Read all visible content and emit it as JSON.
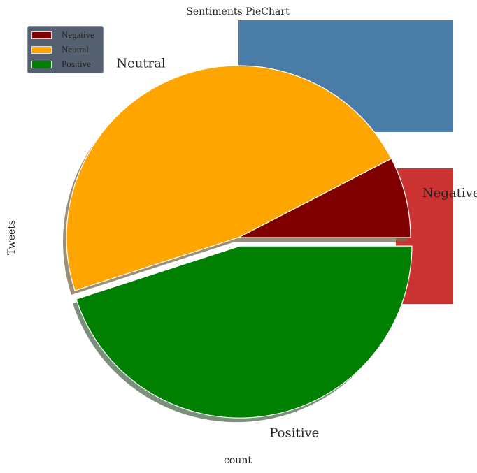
{
  "chart_data": {
    "type": "pie",
    "title": "Sentiments PieChart",
    "xlabel": "count",
    "ylabel": "Tweets",
    "start_angle_deg": 0,
    "direction": "counterclockwise",
    "shadow": true,
    "slices": [
      {
        "label": "Negative",
        "value": 7.6,
        "color": "#800000",
        "explode": 0
      },
      {
        "label": "Neutral",
        "value": 47.4,
        "color": "#ffa500",
        "explode": 0
      },
      {
        "label": "Positive",
        "value": 45.0,
        "color": "#008000",
        "explode": 0.05
      }
    ],
    "legend": {
      "position": "top-left",
      "entries": [
        "Negative",
        "Neutral",
        "Positive"
      ]
    }
  },
  "background_shapes": [
    {
      "color": "#4a7ca8"
    },
    {
      "color": "#cc3333"
    }
  ]
}
